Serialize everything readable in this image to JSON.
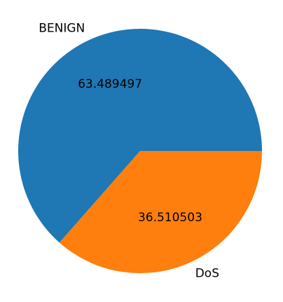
{
  "chart_data": {
    "type": "pie",
    "labels": [
      "BENIGN",
      "DoS"
    ],
    "values": [
      63.489497,
      36.510503
    ],
    "value_labels": [
      "63.489497",
      "36.510503"
    ],
    "colors": [
      "#1f77b4",
      "#ff7f0e"
    ],
    "start_angle_deg": 0,
    "direction": "counterclockwise",
    "title": ""
  }
}
